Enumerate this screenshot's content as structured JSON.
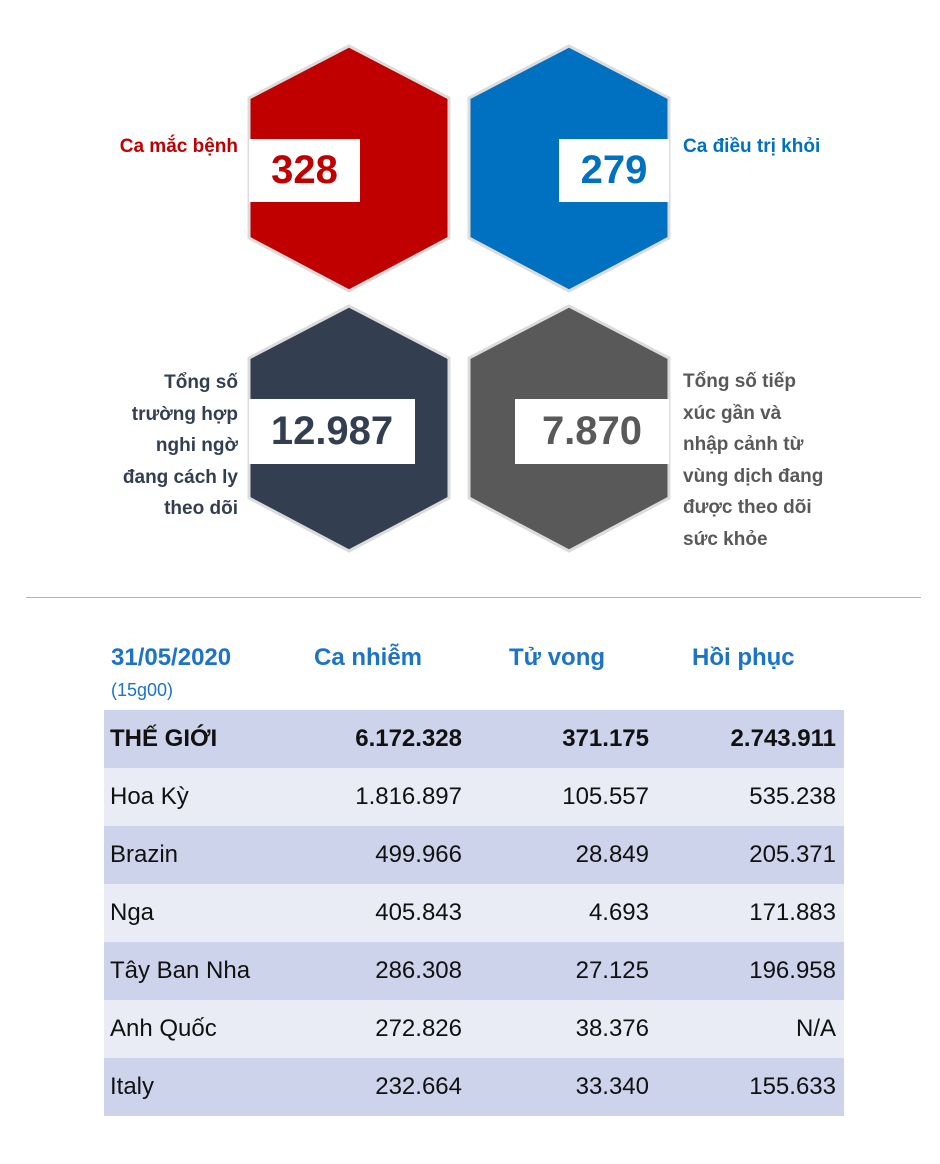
{
  "colors": {
    "red": "#c00000",
    "blue": "#0070c0",
    "navy": "#333f50",
    "gray": "#595959",
    "table_header": "#1c73c7",
    "row_dark": "#cdd3ea",
    "row_light": "#e9ecf5"
  },
  "stats": {
    "cases": {
      "value": "328",
      "label": "Ca mắc bệnh"
    },
    "recovered": {
      "value": "279",
      "label": "Ca điều trị khỏi"
    },
    "quarantine": {
      "value": "12.987",
      "label_lines": [
        "Tổng số",
        "trường hợp",
        "nghi ngờ",
        "đang cách ly",
        "theo dõi"
      ]
    },
    "monitoring": {
      "value": "7.870",
      "label_lines": [
        "Tổng số tiếp",
        "xúc gần và",
        "nhập cảnh từ",
        "vùng dịch đang",
        "được theo dõi",
        "sức khỏe"
      ]
    }
  },
  "chart_data": {
    "type": "table",
    "date": "31/05/2020",
    "time": "(15g00)",
    "columns": [
      "Ca nhiễm",
      "Tử vong",
      "Hồi phục"
    ],
    "rows": [
      {
        "name": "THẾ GIỚI",
        "cases": "6.172.328",
        "deaths": "371.175",
        "recovered": "2.743.911"
      },
      {
        "name": "Hoa Kỳ",
        "cases": "1.816.897",
        "deaths": "105.557",
        "recovered": "535.238"
      },
      {
        "name": "Brazin",
        "cases": "499.966",
        "deaths": "28.849",
        "recovered": "205.371"
      },
      {
        "name": "Nga",
        "cases": "405.843",
        "deaths": "4.693",
        "recovered": "171.883"
      },
      {
        "name": "Tây Ban Nha",
        "cases": "286.308",
        "deaths": "27.125",
        "recovered": "196.958"
      },
      {
        "name": "Anh Quốc",
        "cases": "272.826",
        "deaths": "38.376",
        "recovered": "N/A"
      },
      {
        "name": "Italy",
        "cases": "232.664",
        "deaths": "33.340",
        "recovered": "155.633"
      }
    ]
  }
}
